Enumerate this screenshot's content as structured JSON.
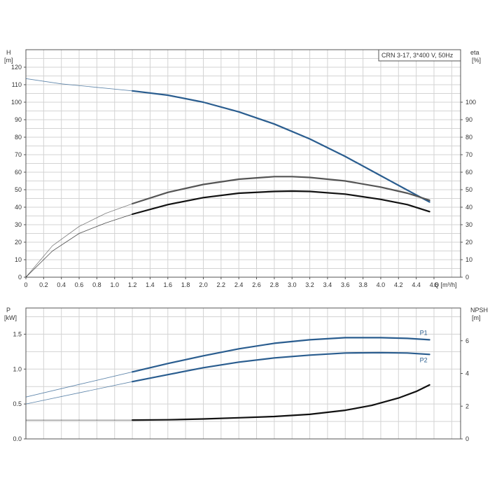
{
  "chart_data": [
    {
      "type": "line",
      "legend": "CRN 3-17, 3*400 V, 50Hz",
      "left_axis_label": [
        "H",
        "[m]"
      ],
      "right_axis_label": [
        "eta",
        "[%]"
      ],
      "x_axis_label": "Q [m³/h]",
      "xlim": [
        0,
        4.9
      ],
      "ylim": [
        0,
        130
      ],
      "grid": true,
      "x_ticks": [
        "0",
        "0.2",
        "0.4",
        "0.6",
        "0.8",
        "1.0",
        "1.2",
        "1.4",
        "1.6",
        "1.8",
        "2.0",
        "2.2",
        "2.4",
        "2.6",
        "2.8",
        "3.0",
        "3.2",
        "3.4",
        "3.6",
        "3.8",
        "4.0",
        "4.2",
        "4.4",
        "4.6"
      ],
      "left_ticks": [
        "0",
        "10",
        "20",
        "30",
        "40",
        "50",
        "60",
        "70",
        "80",
        "90",
        "100",
        "110",
        "120"
      ],
      "right_ticks": [
        "0",
        "10",
        "20",
        "30",
        "40",
        "50",
        "60",
        "70",
        "80",
        "90",
        "100"
      ],
      "series": [
        {
          "key": "H",
          "color": "#2a5d8f",
          "thin": {
            "x": [
              0,
              0.4,
              0.8,
              1.2
            ],
            "y": [
              113.5,
              110.5,
              108.5,
              106.5
            ]
          },
          "thick": {
            "x": [
              1.2,
              1.6,
              2.0,
              2.4,
              2.8,
              3.2,
              3.6,
              4.0,
              4.4,
              4.55
            ],
            "y": [
              106.5,
              104,
              100,
              94.5,
              87.5,
              79,
              69,
              58,
              47,
              43
            ]
          }
        },
        {
          "key": "eta_gray",
          "color": "#555555",
          "thin": {
            "x": [
              0,
              0.3,
              0.6,
              0.9,
              1.2
            ],
            "y": [
              0,
              18,
              29,
              36.5,
              42
            ]
          },
          "thick": {
            "x": [
              1.2,
              1.6,
              2.0,
              2.4,
              2.8,
              3.0,
              3.2,
              3.6,
              4.0,
              4.3,
              4.55
            ],
            "y": [
              42,
              48.5,
              53,
              56,
              57.5,
              57.5,
              57,
              55,
              51.5,
              48,
              44
            ]
          }
        },
        {
          "key": "eta_black",
          "color": "#111111",
          "thin": {
            "x": [
              0,
              0.3,
              0.6,
              0.9,
              1.2
            ],
            "y": [
              0,
              15,
              25,
              31,
              36
            ]
          },
          "thick": {
            "x": [
              1.2,
              1.6,
              2.0,
              2.4,
              2.8,
              3.0,
              3.2,
              3.6,
              4.0,
              4.3,
              4.55
            ],
            "y": [
              36,
              41.5,
              45.5,
              48,
              49,
              49.2,
              49,
              47.5,
              44.5,
              41.5,
              37.5
            ]
          }
        }
      ]
    },
    {
      "type": "line",
      "left_axis_label": [
        "P",
        "[kW]"
      ],
      "right_axis_label": [
        "NPSH",
        "[m]"
      ],
      "xlim": [
        0,
        4.9
      ],
      "ylim": [
        0,
        1.875
      ],
      "right_ylim": [
        0,
        8
      ],
      "grid": true,
      "left_ticks": [
        "0.0",
        "0.5",
        "1.0",
        "1.5"
      ],
      "right_ticks": [
        "0",
        "2",
        "4",
        "6"
      ],
      "series": [
        {
          "key": "P1",
          "name": "P1",
          "color": "#2a5d8f",
          "thin": {
            "x": [
              0,
              0.6,
              1.2
            ],
            "y": [
              0.6,
              0.78,
              0.96
            ]
          },
          "thick": {
            "x": [
              1.2,
              1.6,
              2.0,
              2.4,
              2.8,
              3.2,
              3.6,
              4.0,
              4.3,
              4.55
            ],
            "y": [
              0.96,
              1.08,
              1.19,
              1.29,
              1.37,
              1.42,
              1.45,
              1.45,
              1.44,
              1.42
            ]
          }
        },
        {
          "key": "P2",
          "name": "P2",
          "color": "#2a5d8f",
          "thin": {
            "x": [
              0,
              0.6,
              1.2
            ],
            "y": [
              0.5,
              0.66,
              0.82
            ]
          },
          "thick": {
            "x": [
              1.2,
              1.6,
              2.0,
              2.4,
              2.8,
              3.2,
              3.6,
              4.0,
              4.3,
              4.55
            ],
            "y": [
              0.82,
              0.92,
              1.02,
              1.1,
              1.16,
              1.2,
              1.23,
              1.235,
              1.23,
              1.21
            ]
          }
        },
        {
          "key": "NPSH",
          "color": "#111111",
          "axis": "right",
          "thin": {
            "x": [
              0,
              0.6,
              1.2
            ],
            "y": [
              1.15,
              1.15,
              1.15
            ]
          },
          "thick": {
            "x": [
              1.2,
              1.6,
              2.0,
              2.4,
              2.8,
              3.2,
              3.6,
              3.9,
              4.2,
              4.4,
              4.55
            ],
            "y": [
              1.15,
              1.17,
              1.22,
              1.29,
              1.37,
              1.5,
              1.75,
              2.05,
              2.5,
              2.9,
              3.3
            ]
          }
        }
      ]
    }
  ]
}
